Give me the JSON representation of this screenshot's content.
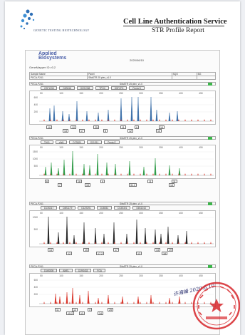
{
  "header": {
    "company": "GENETIC TESTING BIOTECHNOLOGY",
    "title": "Cell Line Authentication Service",
    "subtitle": "STR Profile Report"
  },
  "report": {
    "vendor_logo": [
      "Applied",
      "Biosystems"
    ],
    "software": "GeneMapper ID v3.2",
    "date": "2020/06/10",
    "table": [
      [
        "Sample Name",
        "Panel",
        "SQO",
        "BG"
      ],
      [
        "PECA-P241",
        "SifaSTR 25 plex_v1.0",
        "",
        ""
      ]
    ]
  },
  "colors": {
    "blue": "#3a6ea8",
    "green": "#2e9b46",
    "black": "#222222",
    "red": "#d9362b",
    "stamp": "#d7262b"
  },
  "panels": [
    {
      "sample": "PECA-P241",
      "panel": "SifaSTR 25 plex_v1.0",
      "loci": [
        "CSF1338",
        "D5S818",
        "D2S1338",
        "TPOX",
        "D5F1PO",
        "Penta D"
      ],
      "y_ticks": [
        "600",
        "400",
        "200"
      ],
      "x_ticks": [
        "50",
        "100",
        "150",
        "200",
        "250",
        "300",
        "350",
        "400",
        "450"
      ],
      "dye": "blue",
      "alleles": [
        {
          "v": "10"
        },
        {
          "v": "13"
        },
        {
          "v": "12"
        },
        {
          "v": "17"
        },
        {
          "v": "25"
        },
        {
          "v": "8"
        },
        {
          "v": "11"
        },
        {
          "v": "12"
        },
        {
          "v": "9"
        },
        {
          "v": "13"
        },
        {
          "v": "10"
        }
      ]
    },
    {
      "sample": "PECA-P241",
      "panel": "SifaSTR 25 plex_v1.0",
      "loci": [
        "TH01",
        "vWA",
        "D7S820",
        "D21S11",
        "Penta E"
      ],
      "y_ticks": [
        "1500",
        "1000",
        "500"
      ],
      "x_ticks": [
        "50",
        "100",
        "150",
        "200",
        "250",
        "300",
        "350",
        "400",
        "450"
      ],
      "dye": "green",
      "alleles": [
        {
          "v": "6"
        },
        {
          "v": "7"
        },
        {
          "v": "18"
        },
        {
          "v": "19"
        },
        {
          "v": "9"
        },
        {
          "v": "31.2"
        },
        {
          "v": "11"
        },
        {
          "v": "14"
        },
        {
          "v": "11"
        }
      ]
    },
    {
      "sample": "PECA-P241",
      "panel": "SifaSTR 25 plex_v1.0",
      "loci": [
        "D13S317",
        "D8S1179",
        "D12S391",
        "D18S51",
        "D13S301",
        "D6S1043"
      ],
      "y_ticks": [
        "1000",
        "500"
      ],
      "x_ticks": [
        "50",
        "100",
        "150",
        "200",
        "250",
        "300",
        "350",
        "400",
        "450"
      ],
      "dye": "black",
      "alleles": [
        {
          "v": "14"
        },
        {
          "v": "12"
        },
        {
          "v": "15"
        },
        {
          "v": "17.2"
        },
        {
          "v": "17"
        },
        {
          "v": "13"
        },
        {
          "v": "14"
        },
        {
          "v": "18"
        },
        {
          "v": "19"
        }
      ]
    },
    {
      "sample": "PECA-P241",
      "panel": "SifaSTR 25 plex_v1.0",
      "loci": [
        "D16S539",
        "AMEL",
        "D19S433",
        "FGA"
      ],
      "y_ticks": [
        "600",
        "400",
        "200"
      ],
      "x_ticks": [
        "50",
        "100",
        "150",
        "200",
        "250",
        "300",
        "350",
        "400",
        "450"
      ],
      "dye": "red",
      "alleles": [
        {
          "v": "11"
        },
        {
          "v": "15.2"
        },
        {
          "v": "12"
        },
        {
          "v": "13"
        },
        {
          "v": "X"
        },
        {
          "v": "24"
        },
        {
          "v": "25"
        }
      ]
    }
  ],
  "signature": "许海峰 2020.6.10"
}
